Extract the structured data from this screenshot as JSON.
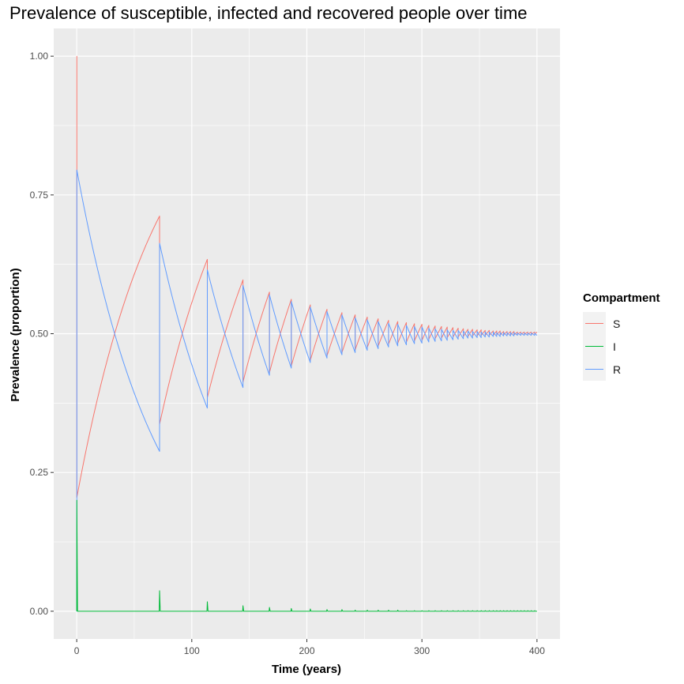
{
  "chart_data": {
    "type": "line",
    "title": "Prevalence of susceptible, infected and recovered people over time",
    "xlabel": "Time (years)",
    "ylabel": "Prevalence (proportion)",
    "xlim": [
      -20,
      420
    ],
    "ylim": [
      -0.05,
      1.05
    ],
    "xticks": [
      0,
      100,
      200,
      300,
      400
    ],
    "xtick_labels": [
      "0",
      "100",
      "200",
      "300",
      "400"
    ],
    "yticks": [
      0,
      0.25,
      0.5,
      0.75,
      1.0
    ],
    "ytick_labels": [
      "0.00",
      "0.25",
      "0.50",
      "0.75",
      "1.00"
    ],
    "legend": {
      "title": "Compartment",
      "position": "right",
      "entries": [
        {
          "label": "S",
          "color": "#F8766D"
        },
        {
          "label": "I",
          "color": "#00BA38"
        },
        {
          "label": "R",
          "color": "#619CFF"
        }
      ]
    },
    "epidemics": {
      "times": [
        0.1,
        72,
        113.5,
        144.5,
        167.5,
        186.5,
        203,
        217.5,
        230.5,
        242,
        252.5,
        262,
        271,
        279,
        286.5,
        293.5,
        300,
        306,
        311.5,
        317,
        322,
        327,
        331.5,
        336,
        340,
        344,
        348,
        351.5,
        355,
        358.5,
        362,
        365,
        368,
        371,
        374,
        377,
        380,
        383,
        386,
        389,
        392,
        395,
        398
      ],
      "S_before": [
        1.0,
        0.712,
        0.634,
        0.597,
        0.575,
        0.562,
        0.552,
        0.544,
        0.538,
        0.534,
        0.53,
        0.527,
        0.524,
        0.522,
        0.52,
        0.518,
        0.517,
        0.515,
        0.514,
        0.513,
        0.512,
        0.511,
        0.51,
        0.509,
        0.508,
        0.508,
        0.507,
        0.507,
        0.506,
        0.506,
        0.505,
        0.505,
        0.505,
        0.504,
        0.504,
        0.504,
        0.504,
        0.503,
        0.503,
        0.503,
        0.503,
        0.503,
        0.503
      ],
      "S_after": [
        0.205,
        0.337,
        0.385,
        0.413,
        0.43,
        0.442,
        0.452,
        0.46,
        0.466,
        0.471,
        0.475,
        0.478,
        0.481,
        0.483,
        0.485,
        0.487,
        0.488,
        0.49,
        0.491,
        0.492,
        0.493,
        0.494,
        0.494,
        0.495,
        0.495,
        0.496,
        0.496,
        0.497,
        0.497,
        0.497,
        0.497,
        0.498,
        0.498,
        0.498,
        0.498,
        0.498,
        0.498,
        0.499,
        0.499,
        0.499,
        0.499,
        0.499,
        0.499
      ],
      "I_peaks": [
        0.2,
        0.037,
        0.017,
        0.01,
        0.007,
        0.005,
        0.004,
        0.003,
        0.003,
        0.002,
        0.002,
        0.002,
        0.002,
        0.002,
        0.001,
        0.001,
        0.001,
        0.001,
        0.001,
        0.001,
        0.001,
        0.001,
        0.001,
        0.001,
        0.001,
        0.001,
        0.001,
        0.001,
        0.001,
        0.001,
        0.001,
        0.001,
        0.001,
        0.001,
        0.001,
        0.001,
        0.001,
        0.001,
        0.001,
        0.001,
        0.001,
        0.001,
        0.001
      ],
      "end_time": 400
    }
  }
}
